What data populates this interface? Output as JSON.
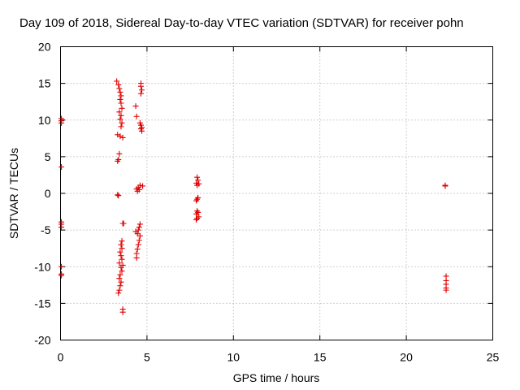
{
  "chart_data": {
    "type": "scatter",
    "title": "Day 109 of 2018, Sidereal Day-to-day VTEC variation (SDTVAR) for receiver pohn",
    "xlabel": "GPS time / hours",
    "ylabel": "SDTVAR / TECUs",
    "xlim": [
      0,
      25
    ],
    "ylim": [
      -20,
      20
    ],
    "xticks": [
      0,
      5,
      10,
      15,
      20,
      25
    ],
    "yticks": [
      20,
      15,
      10,
      5,
      0,
      -5,
      -10,
      -15,
      -20
    ],
    "xtick_labels": [
      "0",
      "5",
      "10",
      "15",
      "20",
      "25"
    ],
    "ytick_labels": [
      "20",
      "15",
      "10",
      "5",
      "0",
      "-5",
      "-10",
      "-15",
      "-20"
    ],
    "grid": true,
    "marker": "+",
    "series": [
      {
        "name": "SDTVAR",
        "color": "#dd0000",
        "points": [
          [
            0.05,
            10.2
          ],
          [
            0.05,
            9.9
          ],
          [
            0.05,
            9.6
          ],
          [
            0.05,
            3.6
          ],
          [
            0.05,
            -3.9
          ],
          [
            0.05,
            -4.2
          ],
          [
            0.05,
            -4.6
          ],
          [
            0.05,
            -10.0
          ],
          [
            0.05,
            -11.0
          ],
          [
            0.05,
            -11.2
          ],
          [
            3.25,
            15.3
          ],
          [
            3.35,
            14.8
          ],
          [
            3.4,
            14.3
          ],
          [
            3.45,
            13.8
          ],
          [
            3.5,
            13.3
          ],
          [
            3.45,
            12.8
          ],
          [
            3.5,
            12.3
          ],
          [
            3.55,
            11.6
          ],
          [
            3.4,
            11.1
          ],
          [
            3.5,
            10.6
          ],
          [
            3.45,
            10.1
          ],
          [
            3.55,
            9.6
          ],
          [
            3.5,
            9.1
          ],
          [
            3.3,
            8.0
          ],
          [
            3.45,
            7.8
          ],
          [
            3.6,
            7.6
          ],
          [
            3.4,
            5.4
          ],
          [
            3.35,
            4.6
          ],
          [
            3.3,
            4.4
          ],
          [
            3.3,
            -0.2
          ],
          [
            3.35,
            -0.3
          ],
          [
            3.6,
            -4.1
          ],
          [
            3.65,
            -4.1
          ],
          [
            3.55,
            -6.5
          ],
          [
            3.5,
            -7.0
          ],
          [
            3.55,
            -7.5
          ],
          [
            3.45,
            -8.0
          ],
          [
            3.5,
            -8.5
          ],
          [
            3.55,
            -9.0
          ],
          [
            3.4,
            -9.5
          ],
          [
            3.6,
            -9.8
          ],
          [
            3.5,
            -10.1
          ],
          [
            3.55,
            -10.6
          ],
          [
            3.45,
            -11.1
          ],
          [
            3.4,
            -11.6
          ],
          [
            3.5,
            -12.1
          ],
          [
            3.45,
            -12.6
          ],
          [
            3.4,
            -13.2
          ],
          [
            3.35,
            -13.6
          ],
          [
            3.6,
            -15.8
          ],
          [
            3.6,
            -16.2
          ],
          [
            4.35,
            11.9
          ],
          [
            4.4,
            10.5
          ],
          [
            4.65,
            15.0
          ],
          [
            4.65,
            14.6
          ],
          [
            4.7,
            14.1
          ],
          [
            4.65,
            13.6
          ],
          [
            4.6,
            9.6
          ],
          [
            4.65,
            9.3
          ],
          [
            4.7,
            9.0
          ],
          [
            4.65,
            8.8
          ],
          [
            4.7,
            8.5
          ],
          [
            4.6,
            1.1
          ],
          [
            4.75,
            1.0
          ],
          [
            4.5,
            0.8
          ],
          [
            4.4,
            0.6
          ],
          [
            4.55,
            0.5
          ],
          [
            4.45,
            0.3
          ],
          [
            4.6,
            -4.2
          ],
          [
            4.55,
            -4.6
          ],
          [
            4.5,
            -5.0
          ],
          [
            4.35,
            -5.2
          ],
          [
            4.45,
            -5.5
          ],
          [
            4.6,
            -5.8
          ],
          [
            4.55,
            -6.4
          ],
          [
            4.5,
            -7.0
          ],
          [
            4.45,
            -7.6
          ],
          [
            4.4,
            -8.2
          ],
          [
            4.4,
            -8.8
          ],
          [
            7.9,
            2.2
          ],
          [
            7.95,
            1.8
          ],
          [
            7.85,
            1.4
          ],
          [
            8.0,
            1.3
          ],
          [
            7.9,
            1.1
          ],
          [
            7.95,
            -0.6
          ],
          [
            7.9,
            -0.8
          ],
          [
            7.85,
            -1.0
          ],
          [
            7.9,
            -2.4
          ],
          [
            7.95,
            -2.6
          ],
          [
            7.85,
            -2.8
          ],
          [
            8.0,
            -3.2
          ],
          [
            7.9,
            -3.4
          ],
          [
            7.85,
            -3.6
          ],
          [
            22.25,
            1.1
          ],
          [
            22.25,
            1.0
          ],
          [
            22.3,
            -11.3
          ],
          [
            22.3,
            -11.9
          ],
          [
            22.3,
            -12.4
          ],
          [
            22.3,
            -12.9
          ],
          [
            22.3,
            -13.2
          ]
        ]
      }
    ]
  }
}
